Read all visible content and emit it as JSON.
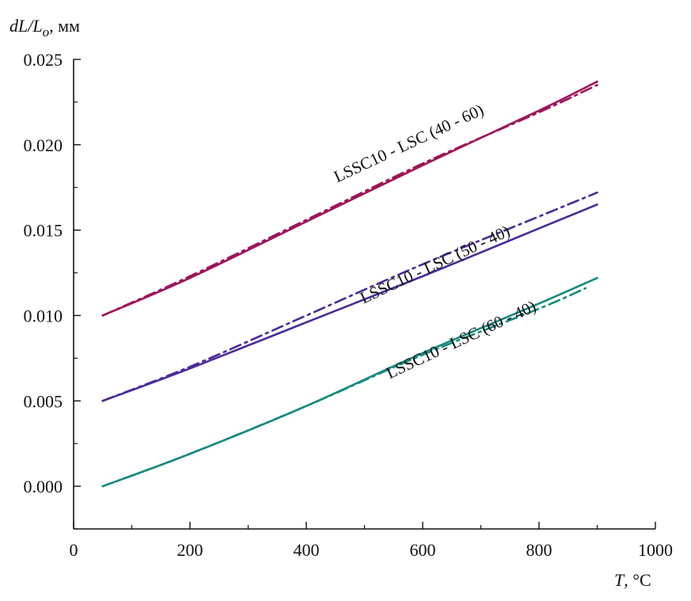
{
  "chart_data": {
    "type": "line",
    "title": "",
    "ylabel": {
      "prefix": "dL/L",
      "sub": "o",
      "suffix": ", мм"
    },
    "xlabel": {
      "var": "T",
      "suffix": ", °C"
    },
    "xlim": [
      0,
      1000
    ],
    "ylim": [
      -0.0025,
      0.025
    ],
    "xticks": [
      0,
      200,
      400,
      600,
      800,
      1000
    ],
    "xtick_labels": [
      "0",
      "200",
      "400",
      "600",
      "800",
      "1000"
    ],
    "yticks": [
      0,
      0.005,
      0.01,
      0.015,
      0.02,
      0.025
    ],
    "ytick_labels": [
      "0.000",
      "0.005",
      "0.010",
      "0.015",
      "0.020",
      "0.025"
    ],
    "grid": false,
    "legend": "none",
    "series": [
      {
        "group": "LSSC10 - LSC (40 - 60)",
        "style": "solid",
        "color": "#9e1458",
        "x": [
          50,
          200,
          400,
          600,
          800,
          900
        ],
        "y": [
          0.01,
          0.0122,
          0.0155,
          0.0188,
          0.022,
          0.0237
        ]
      },
      {
        "group": "LSSC10 - LSC (40 - 60)",
        "style": "dashdot",
        "color": "#9e1458",
        "x": [
          50,
          200,
          400,
          600,
          800,
          900
        ],
        "y": [
          0.01,
          0.0123,
          0.0156,
          0.0189,
          0.0219,
          0.0235
        ]
      },
      {
        "group": "LSSC10 - LSC (50 - 40)",
        "style": "solid",
        "color": "#4b2a99",
        "x": [
          50,
          200,
          400,
          600,
          800,
          900
        ],
        "y": [
          0.005,
          0.0069,
          0.0096,
          0.0123,
          0.0151,
          0.0165
        ]
      },
      {
        "group": "LSSC10 - LSC (50 - 40)",
        "style": "dashdot",
        "color": "#4b2a99",
        "x": [
          50,
          200,
          400,
          600,
          800,
          900
        ],
        "y": [
          0.005,
          0.007,
          0.01,
          0.013,
          0.0158,
          0.0172
        ]
      },
      {
        "group": "LSSC10 - LSC (60 - 40)",
        "style": "solid",
        "color": "#178a7e",
        "x": [
          50,
          200,
          400,
          600,
          800,
          900
        ],
        "y": [
          0.0,
          0.0019,
          0.0047,
          0.0078,
          0.0107,
          0.0122
        ]
      },
      {
        "group": "LSSC10 - LSC (60 - 40)",
        "style": "dashdot",
        "color": "#178a7e",
        "x": [
          50,
          200,
          400,
          600,
          800,
          880
        ],
        "y": [
          0.0,
          0.0019,
          0.0047,
          0.0077,
          0.0104,
          0.0116
        ]
      }
    ],
    "annotations": [
      {
        "text": "LSSC10 - LSC (40 - 60)",
        "x": 580,
        "y": 0.0198,
        "angle": -25
      },
      {
        "text": "LSSC10 - LSC (50 - 40)",
        "x": 625,
        "y": 0.0127,
        "angle": -25
      },
      {
        "text": "LSSC10 - LSC (60 - 40)",
        "x": 670,
        "y": 0.0083,
        "angle": -25
      }
    ]
  }
}
